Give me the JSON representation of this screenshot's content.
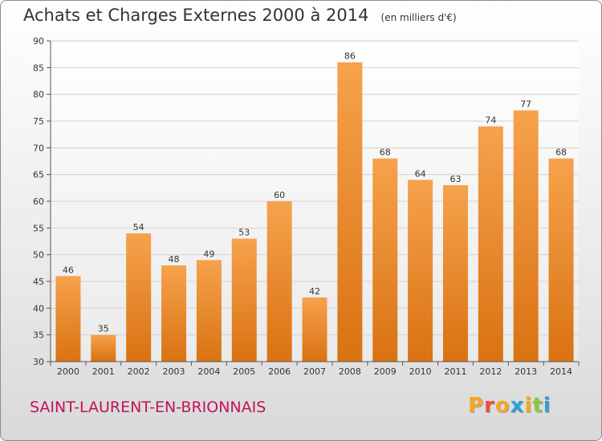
{
  "chart_data": {
    "type": "bar",
    "title": "Achats et Charges Externes 2000 à 2014",
    "subtitle": "(en milliers d'€)",
    "xlabel": "",
    "ylabel": "",
    "categories": [
      "2000",
      "2001",
      "2002",
      "2003",
      "2004",
      "2005",
      "2006",
      "2007",
      "2008",
      "2009",
      "2010",
      "2011",
      "2012",
      "2013",
      "2014"
    ],
    "values": [
      46,
      35,
      54,
      48,
      49,
      53,
      60,
      42,
      86,
      68,
      64,
      63,
      74,
      77,
      68
    ],
    "ylim": [
      30,
      90
    ],
    "yticks": [
      30,
      35,
      40,
      45,
      50,
      55,
      60,
      65,
      70,
      75,
      80,
      85,
      90
    ],
    "grid": true,
    "bar_color": "#f09a3e"
  },
  "footer": {
    "location": "SAINT-LAURENT-EN-BRIONNAIS",
    "logo_text": "Proxiti",
    "logo_colors": [
      "#f5a623",
      "#e94e3c",
      "#f5a623",
      "#2b9fd8",
      "#f5a623",
      "#8cc63f",
      "#2b9fd8"
    ]
  }
}
